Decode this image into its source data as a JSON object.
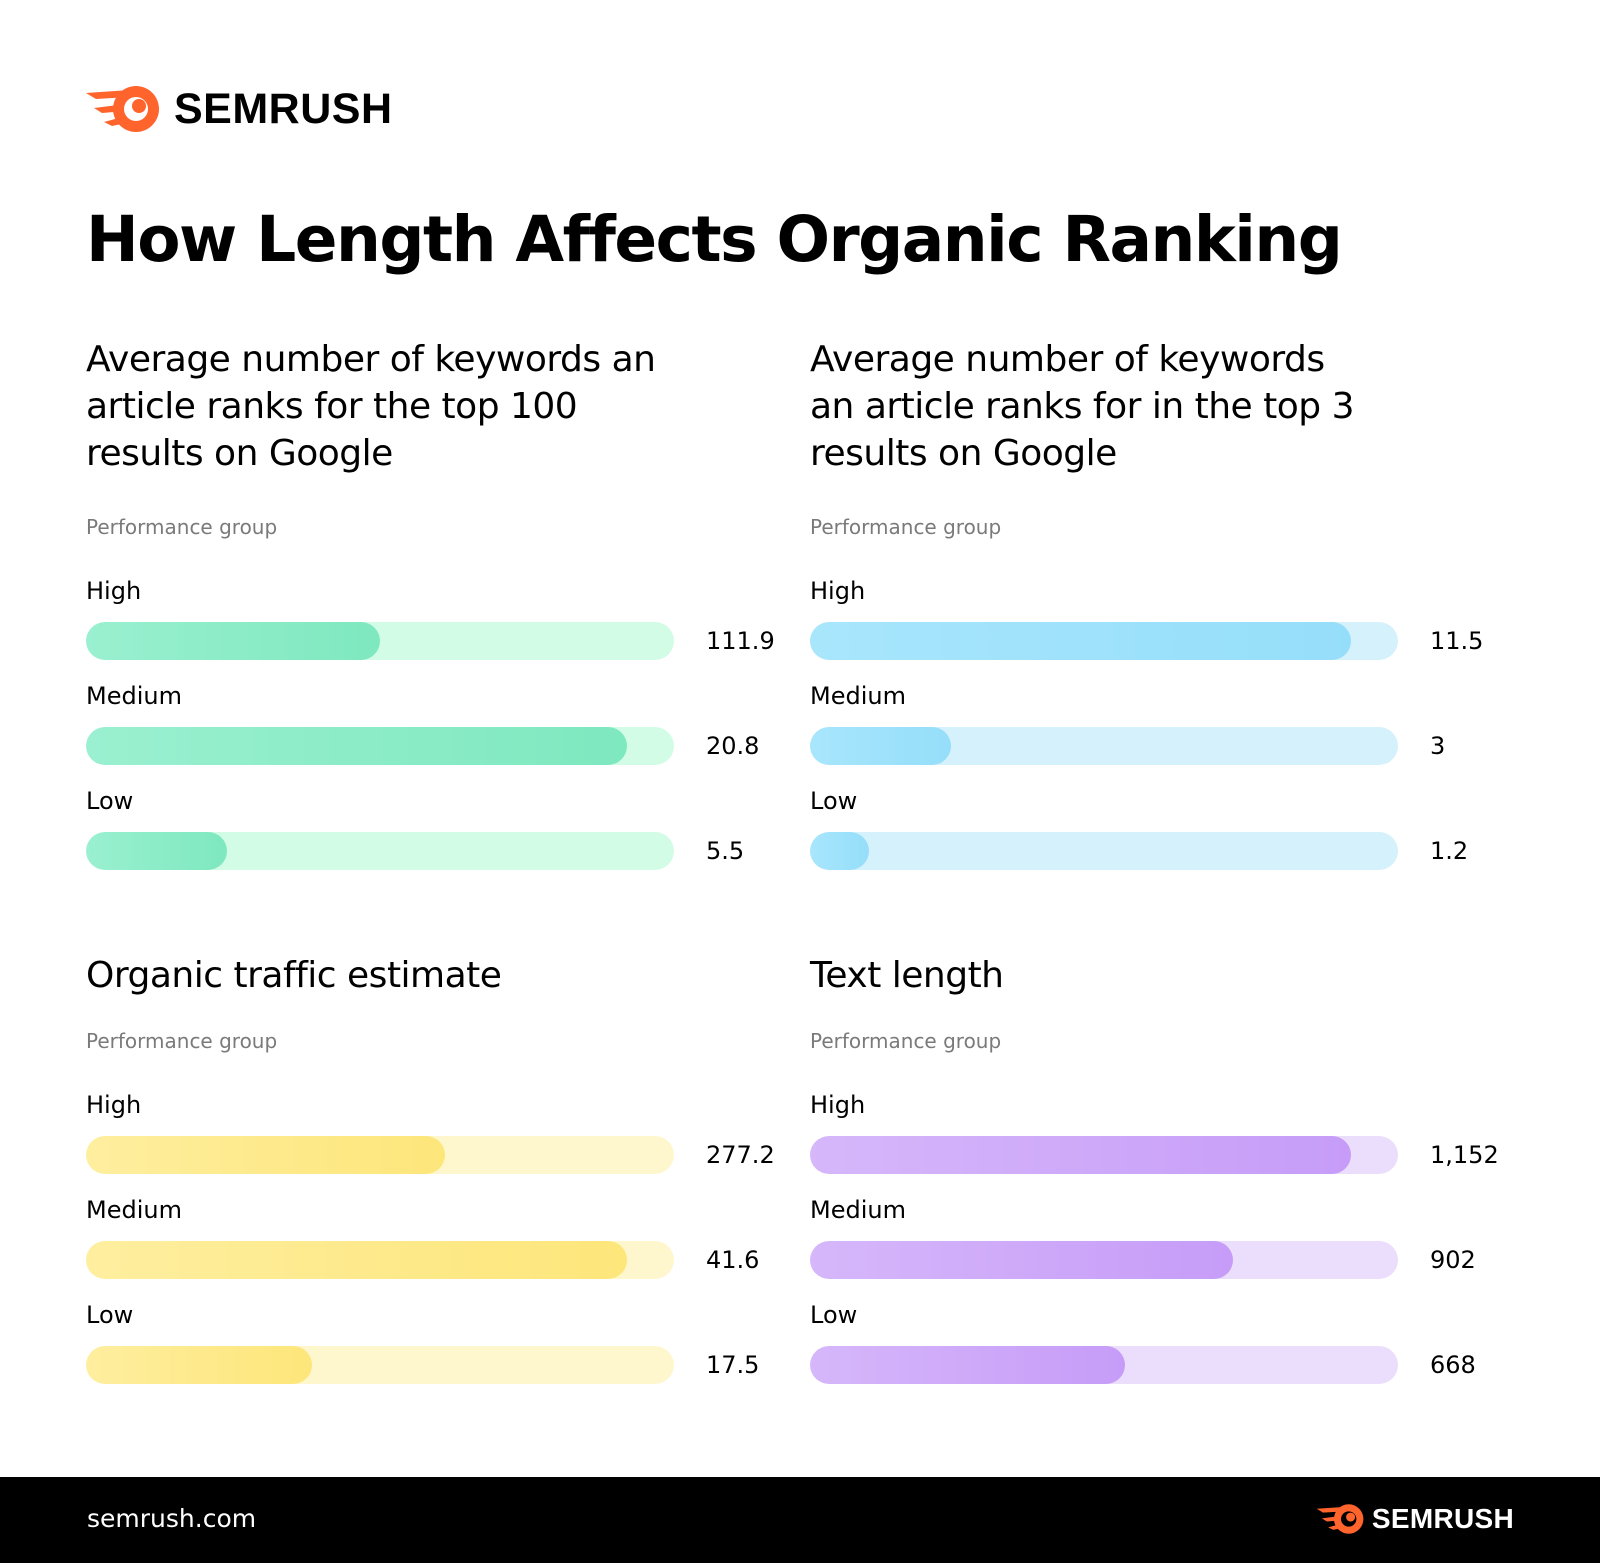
{
  "brand": {
    "name": "SEMRUSH",
    "url": "semrush.com",
    "logo_icon": "semrush-fireball-icon",
    "logo_color": "#FF642D"
  },
  "page_title": "How Length Affects Organic Ranking",
  "chart_data": [
    {
      "type": "bar",
      "orientation": "horizontal",
      "title": "Average number of keywords an article ranks for the top 100 results on Google",
      "subtitle": "Performance group",
      "categories": [
        "High",
        "Medium",
        "Low"
      ],
      "values": [
        111.9,
        20.8,
        5.5
      ],
      "value_labels": [
        "111.9",
        "20.8",
        "5.5"
      ],
      "bar_fill_fraction": [
        0.5,
        0.92,
        0.24
      ],
      "colors": {
        "fill": "#7EE8BF",
        "fill_light": "#9AF0D0",
        "track": "#D2FCE6"
      }
    },
    {
      "type": "bar",
      "orientation": "horizontal",
      "title": "Average number of keywords an article ranks for in the top 3 results on Google",
      "subtitle": "Performance group",
      "categories": [
        "High",
        "Medium",
        "Low"
      ],
      "values": [
        11.5,
        3,
        1.2
      ],
      "value_labels": [
        "11.5",
        "3",
        "1.2"
      ],
      "bar_fill_fraction": [
        0.92,
        0.24,
        0.1
      ],
      "colors": {
        "fill": "#95DEFA",
        "fill_light": "#A8E6FC",
        "track": "#D5F1FB"
      }
    },
    {
      "type": "bar",
      "orientation": "horizontal",
      "title": "Organic traffic estimate",
      "subtitle": "Performance group",
      "categories": [
        "High",
        "Medium",
        "Low"
      ],
      "values": [
        277.2,
        41.6,
        17.5
      ],
      "value_labels": [
        "277.2",
        "41.6",
        "17.5"
      ],
      "bar_fill_fraction": [
        0.61,
        0.92,
        0.385
      ],
      "colors": {
        "fill": "#FDE67A",
        "fill_light": "#FEEE9F",
        "track": "#FEF7CD"
      }
    },
    {
      "type": "bar",
      "orientation": "horizontal",
      "title": "Text length",
      "subtitle": "Performance group",
      "categories": [
        "High",
        "Medium",
        "Low"
      ],
      "values": [
        1152,
        902,
        668
      ],
      "value_labels": [
        "1,152",
        "902",
        "668"
      ],
      "bar_fill_fraction": [
        0.92,
        0.72,
        0.535
      ],
      "colors": {
        "fill": "#C69CF8",
        "fill_light": "#D6B7FA",
        "track": "#EBDDFC"
      }
    }
  ]
}
